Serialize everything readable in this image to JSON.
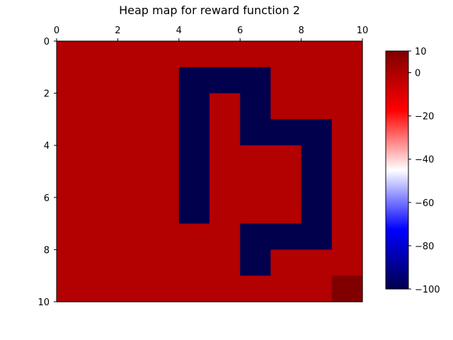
{
  "chart_data": {
    "type": "heatmap",
    "title": "Heap map for reward function 2",
    "xlabel": "",
    "ylabel": "",
    "x_ticks": [
      "0",
      "2",
      "4",
      "6",
      "8",
      "10"
    ],
    "y_ticks": [
      "0",
      "2",
      "4",
      "6",
      "8",
      "10"
    ],
    "x_tick_values": [
      0,
      2,
      4,
      6,
      8,
      10
    ],
    "y_tick_values": [
      0,
      2,
      4,
      6,
      8,
      10
    ],
    "xlim": [
      0,
      10
    ],
    "ylim": [
      10,
      0
    ],
    "x_axis_position": "top",
    "y_axis_inverted": true,
    "grid": false,
    "colormap": "seismic",
    "colorbar": {
      "vmin": -100,
      "vmax": 10,
      "ticks": [
        10,
        0,
        -20,
        -40,
        -60,
        -80,
        -100
      ],
      "tick_labels": [
        "10",
        "0",
        "−20",
        "−40",
        "−60",
        "−80",
        "−100"
      ],
      "placement": "right"
    },
    "values": [
      [
        -1,
        -1,
        -1,
        -1,
        -1,
        -1,
        -1,
        -1,
        -1,
        -1
      ],
      [
        -1,
        -1,
        -1,
        -1,
        -100,
        -100,
        -100,
        -1,
        -1,
        -1
      ],
      [
        -1,
        -1,
        -1,
        -1,
        -100,
        -1,
        -100,
        -1,
        -1,
        -1
      ],
      [
        -1,
        -1,
        -1,
        -1,
        -100,
        -1,
        -100,
        -100,
        -100,
        -1
      ],
      [
        -1,
        -1,
        -1,
        -1,
        -100,
        -1,
        -1,
        -1,
        -100,
        -1
      ],
      [
        -1,
        -1,
        -1,
        -1,
        -100,
        -1,
        -1,
        -1,
        -100,
        -1
      ],
      [
        -1,
        -1,
        -1,
        -1,
        -100,
        -1,
        -1,
        -1,
        -100,
        -1
      ],
      [
        -1,
        -1,
        -1,
        -1,
        -1,
        -1,
        -100,
        -100,
        -100,
        -1
      ],
      [
        -1,
        -1,
        -1,
        -1,
        -1,
        -1,
        -100,
        -1,
        -1,
        -1
      ],
      [
        -1,
        -1,
        -1,
        -1,
        -1,
        -1,
        -1,
        -1,
        -1,
        10
      ]
    ]
  }
}
